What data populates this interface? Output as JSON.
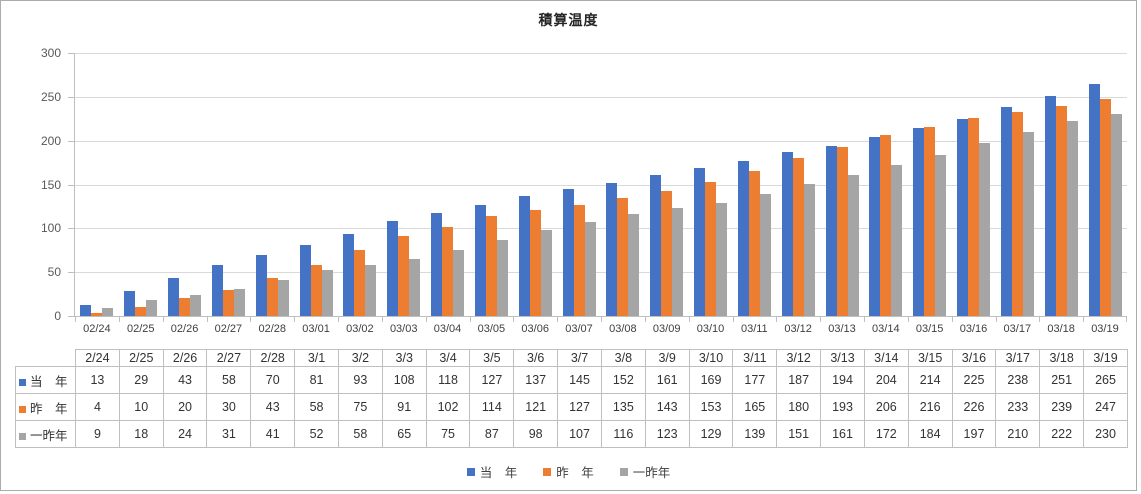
{
  "chart_data": {
    "type": "bar",
    "title": "積算温度",
    "categories": [
      "02/24",
      "02/25",
      "02/26",
      "02/27",
      "02/28",
      "03/01",
      "03/02",
      "03/03",
      "03/04",
      "03/05",
      "03/06",
      "03/07",
      "03/08",
      "03/09",
      "03/10",
      "03/11",
      "03/12",
      "03/13",
      "03/14",
      "03/15",
      "03/16",
      "03/17",
      "03/18",
      "03/19"
    ],
    "data_table_headers": [
      "2/24",
      "2/25",
      "2/26",
      "2/27",
      "2/28",
      "3/1",
      "3/2",
      "3/3",
      "3/4",
      "3/5",
      "3/6",
      "3/7",
      "3/8",
      "3/9",
      "3/10",
      "3/11",
      "3/12",
      "3/13",
      "3/14",
      "3/15",
      "3/16",
      "3/17",
      "3/18",
      "3/19"
    ],
    "series": [
      {
        "name": "当　年",
        "color": "#4472C4",
        "values": [
          13,
          29,
          43,
          58,
          70,
          81,
          93,
          108,
          118,
          127,
          137,
          145,
          152,
          161,
          169,
          177,
          187,
          194,
          204,
          214,
          225,
          238,
          251,
          265
        ]
      },
      {
        "name": "昨　年",
        "color": "#ED7D31",
        "values": [
          4,
          10,
          20,
          30,
          43,
          58,
          75,
          91,
          102,
          114,
          121,
          127,
          135,
          143,
          153,
          165,
          180,
          193,
          206,
          216,
          226,
          233,
          239,
          247
        ]
      },
      {
        "name": "一昨年",
        "color": "#A5A5A5",
        "values": [
          9,
          18,
          24,
          31,
          41,
          52,
          58,
          65,
          75,
          87,
          98,
          107,
          116,
          123,
          129,
          139,
          151,
          161,
          172,
          184,
          197,
          210,
          222,
          230
        ]
      }
    ],
    "xlabel": "",
    "ylabel": "",
    "ylim": [
      0,
      300
    ],
    "y_tick_interval": 50,
    "grid": true,
    "legend_position": "bottom",
    "gridline_color": "#D9D9D9",
    "axis_color": "#BFBFBF"
  }
}
